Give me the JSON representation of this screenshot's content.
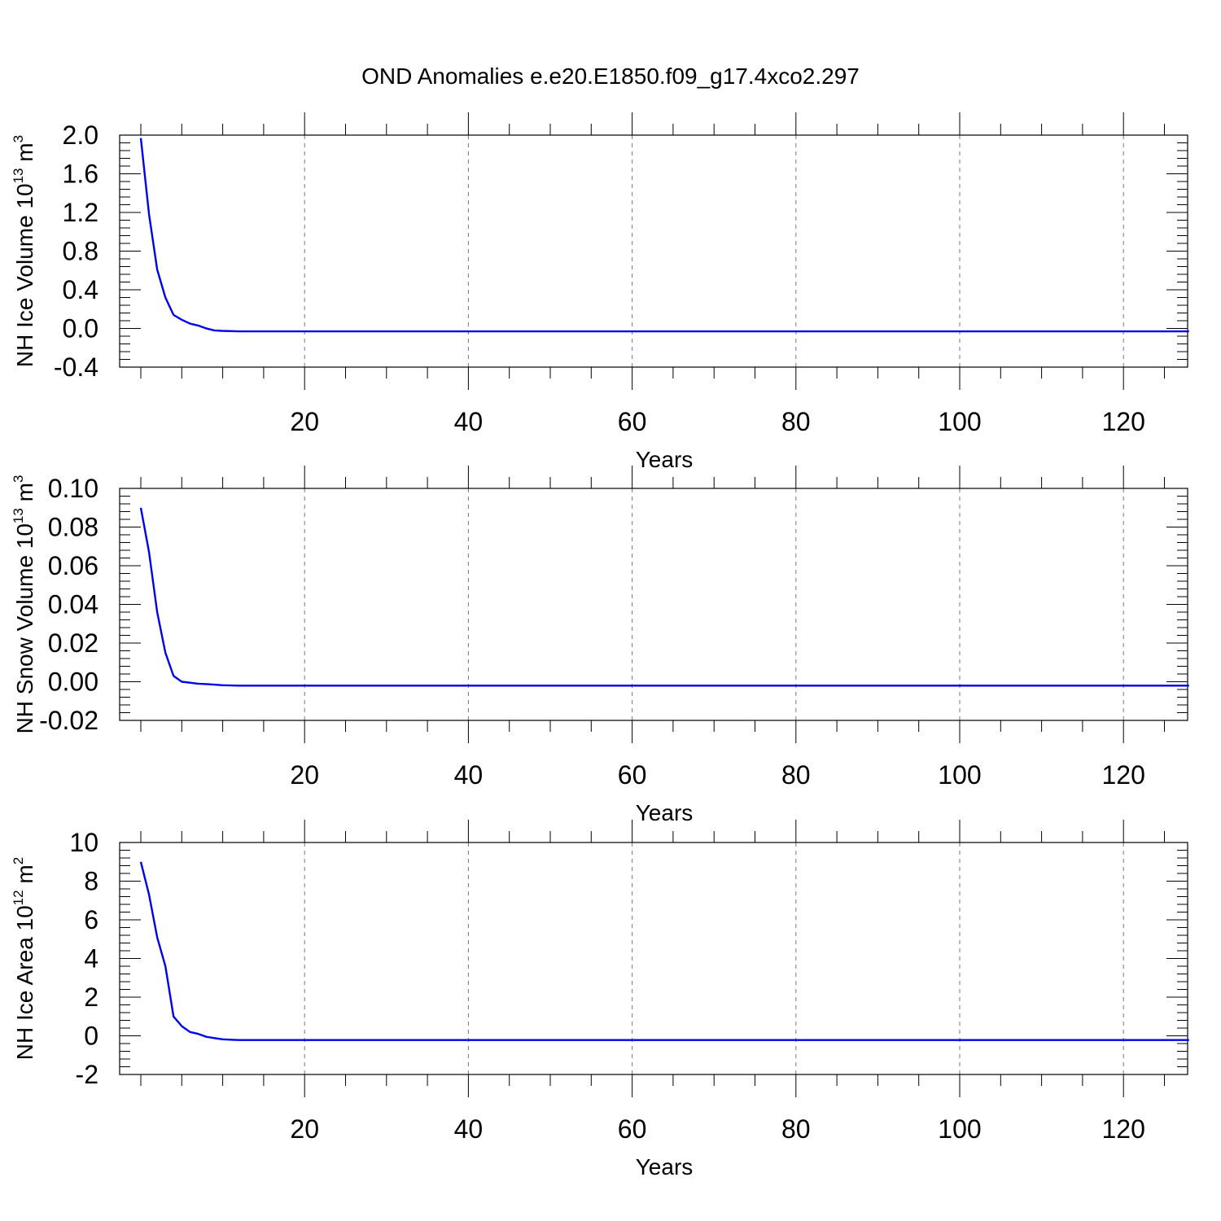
{
  "title": "OND Anomalies e.e20.E1850.f09_g17.4xco2.297",
  "chart_data": [
    {
      "type": "line",
      "ylabel": "NH Ice Volume 10",
      "ylabel_exp": "13",
      "ylabel_unit": " m",
      "ylabel_unit_exp": "3",
      "xlabel": "Years",
      "xlim": [
        0,
        128
      ],
      "ylim": [
        -0.4,
        2.0
      ],
      "yticks": [
        2.0,
        1.6,
        1.2,
        0.8,
        0.4,
        0.0,
        -0.4
      ],
      "ytick_labels": [
        "2.0",
        "1.6",
        "1.2",
        "0.8",
        "0.4",
        "0.0",
        "-0.4"
      ],
      "xticks": [
        20,
        40,
        60,
        80,
        100,
        120
      ],
      "xtick_labels": [
        "20",
        "40",
        "60",
        "80",
        "100",
        "120"
      ],
      "grid": "vertical dashed",
      "line_color": "#0000ee",
      "series": [
        {
          "x": [
            0,
            1,
            2,
            3,
            4,
            5,
            6,
            7,
            8,
            9,
            10,
            12,
            14,
            20,
            40,
            60,
            80,
            100,
            128
          ],
          "values": [
            1.97,
            1.18,
            0.61,
            0.32,
            0.14,
            0.09,
            0.05,
            0.03,
            0.0,
            -0.02,
            -0.025,
            -0.03,
            -0.03,
            -0.03,
            -0.03,
            -0.03,
            -0.03,
            -0.03,
            -0.03
          ]
        }
      ]
    },
    {
      "type": "line",
      "ylabel": "NH Snow Volume 10",
      "ylabel_exp": "13",
      "ylabel_unit": " m",
      "ylabel_unit_exp": "3",
      "xlabel": "Years",
      "xlim": [
        0,
        128
      ],
      "ylim": [
        -0.02,
        0.1
      ],
      "yticks": [
        0.1,
        0.08,
        0.06,
        0.04,
        0.02,
        0.0,
        -0.02
      ],
      "ytick_labels": [
        "0.10",
        "0.08",
        "0.06",
        "0.04",
        "0.02",
        "0.00",
        "-0.02"
      ],
      "xticks": [
        20,
        40,
        60,
        80,
        100,
        120
      ],
      "xtick_labels": [
        "20",
        "40",
        "60",
        "80",
        "100",
        "120"
      ],
      "grid": "vertical dashed",
      "line_color": "#0000ee",
      "series": [
        {
          "x": [
            0,
            1,
            2,
            3,
            4,
            5,
            6,
            7,
            8,
            9,
            10,
            12,
            14,
            20,
            40,
            60,
            80,
            100,
            128
          ],
          "values": [
            0.09,
            0.067,
            0.036,
            0.015,
            0.003,
            0.0,
            -0.0005,
            -0.001,
            -0.0012,
            -0.0015,
            -0.0018,
            -0.002,
            -0.002,
            -0.002,
            -0.002,
            -0.002,
            -0.002,
            -0.002,
            -0.002
          ]
        }
      ]
    },
    {
      "type": "line",
      "ylabel": "NH Ice Area 10",
      "ylabel_exp": "12",
      "ylabel_unit": " m",
      "ylabel_unit_exp": "2",
      "xlabel": "Years",
      "xlim": [
        0,
        128
      ],
      "ylim": [
        -2,
        10
      ],
      "yticks": [
        10,
        8,
        6,
        4,
        2,
        0,
        -2
      ],
      "ytick_labels": [
        "10",
        "8",
        "6",
        "4",
        "2",
        "0",
        "-2"
      ],
      "xticks": [
        20,
        40,
        60,
        80,
        100,
        120
      ],
      "xtick_labels": [
        "20",
        "40",
        "60",
        "80",
        "100",
        "120"
      ],
      "grid": "vertical dashed",
      "line_color": "#0000ee",
      "series": [
        {
          "x": [
            0,
            1,
            2,
            3,
            4,
            5,
            6,
            7,
            8,
            9,
            10,
            11,
            12,
            14,
            20,
            40,
            60,
            80,
            100,
            128
          ],
          "values": [
            9.0,
            7.3,
            5.1,
            3.6,
            1.0,
            0.5,
            0.2,
            0.1,
            -0.05,
            -0.12,
            -0.18,
            -0.2,
            -0.22,
            -0.22,
            -0.22,
            -0.22,
            -0.22,
            -0.22,
            -0.22,
            -0.22
          ]
        }
      ]
    }
  ]
}
